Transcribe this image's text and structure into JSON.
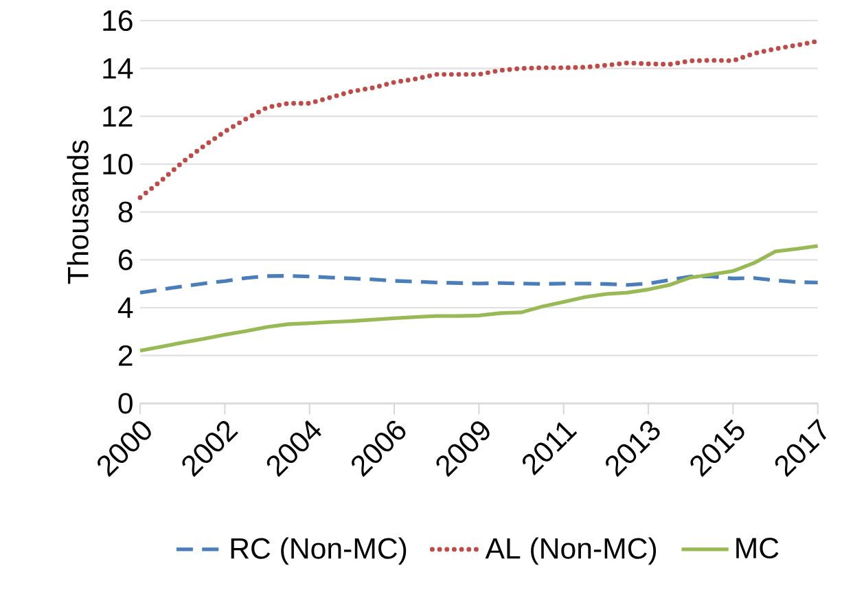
{
  "chart_data": {
    "type": "line",
    "ylabel": "Thousands",
    "categories": [
      "2000",
      null,
      null,
      null,
      "2002",
      null,
      null,
      null,
      "2004",
      null,
      null,
      null,
      "2006",
      null,
      null,
      null,
      "2009",
      null,
      null,
      null,
      "2011",
      null,
      null,
      null,
      "2013",
      null,
      null,
      null,
      "2015",
      null,
      null,
      null,
      "2017"
    ],
    "series": [
      {
        "name": "RC (Non-MC)",
        "color": "#4a7ebb",
        "line_style": "dashed",
        "values": [
          4.63,
          4.76,
          4.89,
          5.01,
          5.11,
          5.24,
          5.32,
          5.33,
          5.3,
          5.26,
          5.22,
          5.18,
          5.12,
          5.09,
          5.05,
          5.03,
          5.01,
          5.03,
          5.01,
          4.99,
          5.01,
          5.01,
          4.99,
          4.95,
          5.01,
          5.16,
          5.3,
          5.3,
          5.22,
          5.24,
          5.14,
          5.07,
          5.05
        ]
      },
      {
        "name": "AL (Non-MC)",
        "color": "#be4b48",
        "line_style": "dotted",
        "values": [
          8.6,
          9.31,
          10.08,
          10.75,
          11.36,
          11.89,
          12.37,
          12.54,
          12.54,
          12.79,
          13.04,
          13.19,
          13.42,
          13.56,
          13.75,
          13.75,
          13.75,
          13.92,
          14.0,
          14.03,
          14.03,
          14.05,
          14.13,
          14.23,
          14.19,
          14.17,
          14.32,
          14.34,
          14.32,
          14.63,
          14.82,
          14.97,
          15.14
        ]
      },
      {
        "name": "MC",
        "color": "#98b954",
        "line_style": "solid",
        "values": [
          2.2,
          2.37,
          2.54,
          2.7,
          2.87,
          3.02,
          3.19,
          3.31,
          3.35,
          3.4,
          3.44,
          3.5,
          3.56,
          3.61,
          3.65,
          3.65,
          3.67,
          3.77,
          3.8,
          4.05,
          4.24,
          4.44,
          4.57,
          4.63,
          4.76,
          4.95,
          5.26,
          5.39,
          5.53,
          5.87,
          6.35,
          6.46,
          6.58
        ]
      }
    ],
    "ylim": [
      0,
      16
    ],
    "yticks": [
      0,
      2,
      4,
      6,
      8,
      10,
      12,
      14,
      16
    ],
    "grid": "y",
    "legend": "bottom",
    "marker": "none"
  }
}
